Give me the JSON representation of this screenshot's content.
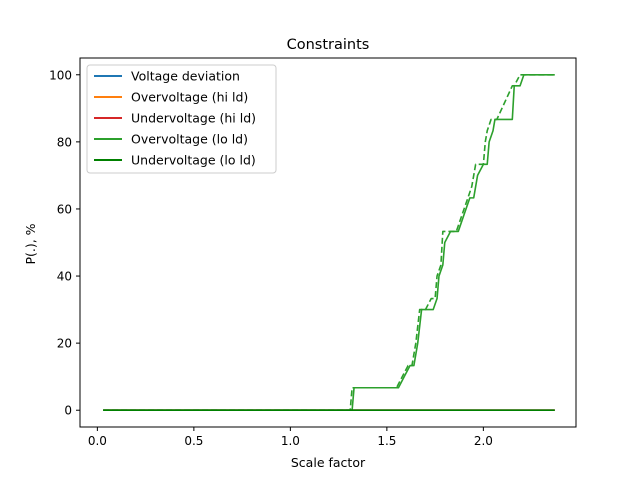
{
  "chart_data": {
    "type": "line",
    "title": "Constraints",
    "xlabel": "Scale factor",
    "ylabel": "P(.), %",
    "xlim": [
      -0.09,
      2.48
    ],
    "ylim": [
      -5,
      105
    ],
    "xticks": [
      0.0,
      0.5,
      1.0,
      1.5,
      2.0
    ],
    "xtick_labels": [
      "0.0",
      "0.5",
      "1.0",
      "1.5",
      "2.0"
    ],
    "yticks": [
      0,
      20,
      40,
      60,
      80,
      100
    ],
    "ytick_labels": [
      "0",
      "20",
      "40",
      "60",
      "80",
      "100"
    ],
    "grid": false,
    "legend_position": "upper-left",
    "series": [
      {
        "name": "Voltage deviation",
        "color": "#1f77b4",
        "dash": "solid",
        "x": [
          0.03,
          2.37
        ],
        "y": [
          0,
          0
        ]
      },
      {
        "name": "Overvoltage (hi ld)",
        "color": "#ff7f0e",
        "dash": "solid",
        "x": [
          0.03,
          2.37
        ],
        "y": [
          0,
          0
        ]
      },
      {
        "name": "Undervoltage (hi ld)",
        "color": "#d62728",
        "dash": "solid",
        "x": [
          0.03,
          2.37
        ],
        "y": [
          0,
          0
        ]
      },
      {
        "name": "Overvoltage (lo ld)",
        "color": "#2ca02c",
        "dash": "solid",
        "x": [
          0.03,
          1.32,
          1.33,
          1.56,
          1.59,
          1.62,
          1.64,
          1.66,
          1.68,
          1.71,
          1.74,
          1.76,
          1.77,
          1.79,
          1.8,
          1.83,
          1.87,
          1.91,
          1.93,
          1.95,
          1.97,
          2.0,
          2.01,
          2.02,
          2.03,
          2.05,
          2.06,
          2.08,
          2.09,
          2.1,
          2.11,
          2.13,
          2.14,
          2.15,
          2.16,
          2.17,
          2.18,
          2.19,
          2.21,
          2.22,
          2.23,
          2.24,
          2.37
        ],
        "y": [
          0,
          0,
          6.7,
          6.7,
          10,
          13.3,
          13.3,
          20,
          30,
          30,
          30,
          33.3,
          40,
          43.3,
          50,
          53.3,
          53.3,
          60,
          63.3,
          63.3,
          70,
          73.3,
          73.3,
          73.3,
          80,
          83.3,
          86.7,
          86.7,
          86.7,
          86.7,
          86.7,
          86.7,
          86.7,
          86.7,
          96.7,
          96.7,
          96.7,
          96.7,
          100,
          100,
          100,
          100,
          100
        ]
      },
      {
        "name": "Overvoltage (lo ld) dashed",
        "color": "#2ca02c",
        "dash": "dashed",
        "x": [
          0.03,
          1.31,
          1.32,
          1.55,
          1.58,
          1.61,
          1.63,
          1.65,
          1.67,
          1.7,
          1.73,
          1.75,
          1.76,
          1.78,
          1.79,
          1.82,
          1.86,
          1.9,
          1.92,
          1.94,
          1.96,
          1.99,
          2.0,
          2.01,
          2.02,
          2.04,
          2.05,
          2.07,
          2.15,
          2.16,
          2.19,
          2.2,
          2.37
        ],
        "y": [
          0,
          0,
          6.7,
          6.7,
          10,
          13.3,
          13.3,
          20,
          30,
          30,
          33.3,
          33.3,
          40,
          43.3,
          53.3,
          53.3,
          53.3,
          60,
          63.3,
          66.7,
          73.3,
          73.3,
          73.3,
          80,
          83.3,
          86.7,
          86.7,
          86.7,
          96.7,
          96.7,
          100,
          100,
          100
        ]
      },
      {
        "name": "Undervoltage (lo ld)",
        "color": "#008000",
        "dash": "solid",
        "x": [
          0.03,
          2.37
        ],
        "y": [
          0,
          0
        ]
      }
    ],
    "legend": [
      {
        "label": "Voltage deviation",
        "color": "#1f77b4"
      },
      {
        "label": "Overvoltage (hi ld)",
        "color": "#ff7f0e"
      },
      {
        "label": "Undervoltage (hi ld)",
        "color": "#d62728"
      },
      {
        "label": "Overvoltage (lo ld)",
        "color": "#2ca02c"
      },
      {
        "label": "Undervoltage (lo ld)",
        "color": "#008000"
      }
    ]
  }
}
